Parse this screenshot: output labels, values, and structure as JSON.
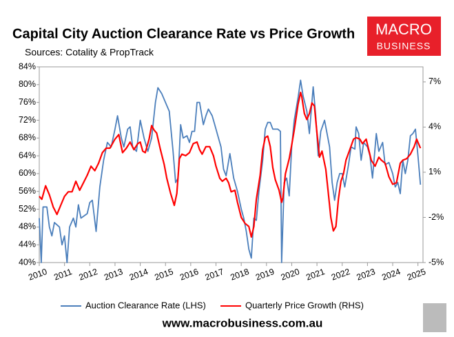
{
  "chart_data": {
    "type": "line",
    "title": "Capital City Auction Clearance Rate vs Price Growth",
    "subtitle": "Sources: Cotality & PropTrack",
    "logo_text": "MACRO",
    "logo_subtext": "BUSINESS",
    "website": "www.macrobusiness.com.au",
    "xlim": [
      2010,
      2025.2
    ],
    "xticks": [
      2010,
      2011,
      2012,
      2013,
      2014,
      2015,
      2016,
      2017,
      2018,
      2019,
      2020,
      2021,
      2022,
      2023,
      2024,
      2025
    ],
    "ylim": [
      40,
      84
    ],
    "yticks": [
      {
        "value": 40,
        "label": "40%"
      },
      {
        "value": 44,
        "label": "44%"
      },
      {
        "value": 48,
        "label": "48%"
      },
      {
        "value": 52,
        "label": "52%"
      },
      {
        "value": 56,
        "label": "56%"
      },
      {
        "value": 60,
        "label": "60%"
      },
      {
        "value": 64,
        "label": "64%"
      },
      {
        "value": 68,
        "label": "68%"
      },
      {
        "value": 72,
        "label": "72%"
      },
      {
        "value": 76,
        "label": "76%"
      },
      {
        "value": 80,
        "label": "80%"
      },
      {
        "value": 84,
        "label": "84%"
      }
    ],
    "y2lim": [
      -5,
      8
    ],
    "y2ticks": [
      {
        "value": -5,
        "label": "-5%"
      },
      {
        "value": -2,
        "label": "-2%"
      },
      {
        "value": 1,
        "label": "1%"
      },
      {
        "value": 4,
        "label": "4%"
      },
      {
        "value": 7,
        "label": "7%"
      }
    ],
    "grid": false,
    "legend": "bottom",
    "series": [
      {
        "name": "Auction Clearance Rate (LHS)",
        "color": "#4a7ebb",
        "x": [
          2010.0,
          2010.08,
          2010.15,
          2010.3,
          2010.4,
          2010.5,
          2010.6,
          2010.8,
          2010.9,
          2011.0,
          2011.1,
          2011.2,
          2011.35,
          2011.45,
          2011.55,
          2011.65,
          2011.9,
          2012.0,
          2012.1,
          2012.25,
          2012.4,
          2012.55,
          2012.7,
          2012.85,
          2013.0,
          2013.1,
          2013.25,
          2013.35,
          2013.5,
          2013.6,
          2013.7,
          2013.85,
          2014.0,
          2014.15,
          2014.3,
          2014.45,
          2014.6,
          2014.7,
          2014.85,
          2015.0,
          2015.15,
          2015.3,
          2015.4,
          2015.5,
          2015.6,
          2015.7,
          2015.85,
          2015.95,
          2016.05,
          2016.15,
          2016.25,
          2016.35,
          2016.5,
          2016.6,
          2016.7,
          2016.85,
          2016.95,
          2017.05,
          2017.2,
          2017.3,
          2017.4,
          2017.55,
          2017.7,
          2017.85,
          2018.0,
          2018.1,
          2018.2,
          2018.3,
          2018.4,
          2018.5,
          2018.6,
          2018.7,
          2018.85,
          2018.95,
          2019.05,
          2019.15,
          2019.25,
          2019.45,
          2019.55,
          2019.6,
          2019.7,
          2019.8,
          2019.9,
          2020.0,
          2020.1,
          2020.25,
          2020.35,
          2020.45,
          2020.6,
          2020.7,
          2020.85,
          2020.95,
          2021.05,
          2021.15,
          2021.3,
          2021.5,
          2021.6,
          2021.7,
          2021.8,
          2021.9,
          2022.0,
          2022.1,
          2022.25,
          2022.35,
          2022.5,
          2022.55,
          2022.65,
          2022.75,
          2022.85,
          2023.0,
          2023.1,
          2023.2,
          2023.35,
          2023.45,
          2023.6,
          2023.7,
          2023.85,
          2024.0,
          2024.1,
          2024.2,
          2024.3,
          2024.4,
          2024.5,
          2024.6,
          2024.7,
          2024.8,
          2024.9,
          2025.0,
          2025.1
        ],
        "values": [
          50,
          40,
          52.5,
          52.5,
          48,
          46,
          49,
          48,
          44,
          46,
          40,
          48,
          50,
          48,
          53,
          50,
          51,
          53.5,
          54,
          47,
          57,
          63,
          67,
          66,
          70,
          73,
          68,
          66,
          70,
          70.5,
          66,
          65,
          72,
          68,
          65,
          68,
          76,
          79.3,
          78,
          76,
          74,
          65,
          58,
          59,
          71,
          68,
          68.5,
          67,
          69.5,
          69.5,
          76,
          76,
          71,
          73,
          74.5,
          73,
          71,
          69,
          66,
          61,
          59.5,
          64.5,
          59,
          56,
          52,
          50,
          47,
          43,
          41,
          50,
          49.5,
          56,
          63,
          70,
          71.5,
          71.5,
          70,
          70,
          69.5,
          40,
          58,
          59,
          55,
          66,
          72,
          77,
          81,
          77.5,
          74,
          69,
          79.5,
          73,
          64,
          69.5,
          72,
          66,
          58,
          54,
          58,
          60,
          60,
          57,
          62,
          66,
          65.5,
          70.5,
          69,
          63,
          67,
          66,
          64,
          59,
          69,
          65,
          67,
          62,
          62.5,
          60,
          57,
          58,
          55.5,
          63,
          60,
          63,
          68.5,
          69,
          70,
          64,
          57.5
        ]
      },
      {
        "name": "Quarterly Price Growth (RHS)",
        "color": "#ff0000",
        "axis": "y2",
        "x": [
          2010.0,
          2010.1,
          2010.25,
          2010.4,
          2010.55,
          2010.7,
          2010.85,
          2011.0,
          2011.15,
          2011.3,
          2011.45,
          2011.6,
          2011.75,
          2011.9,
          2012.05,
          2012.2,
          2012.35,
          2012.5,
          2012.65,
          2012.8,
          2013.0,
          2013.15,
          2013.3,
          2013.45,
          2013.6,
          2013.75,
          2013.9,
          2014.0,
          2014.1,
          2014.2,
          2014.35,
          2014.45,
          2014.55,
          2014.65,
          2014.8,
          2014.95,
          2015.05,
          2015.2,
          2015.35,
          2015.45,
          2015.55,
          2015.65,
          2015.8,
          2015.95,
          2016.1,
          2016.25,
          2016.35,
          2016.45,
          2016.6,
          2016.75,
          2016.9,
          2017.0,
          2017.15,
          2017.25,
          2017.4,
          2017.5,
          2017.6,
          2017.75,
          2017.85,
          2018.0,
          2018.15,
          2018.3,
          2018.4,
          2018.5,
          2018.6,
          2018.75,
          2018.85,
          2018.95,
          2019.05,
          2019.15,
          2019.25,
          2019.35,
          2019.5,
          2019.6,
          2019.65,
          2019.75,
          2019.9,
          2020.0,
          2020.1,
          2020.25,
          2020.35,
          2020.4,
          2020.5,
          2020.6,
          2020.7,
          2020.8,
          2020.9,
          2021.0,
          2021.1,
          2021.2,
          2021.35,
          2021.45,
          2021.55,
          2021.65,
          2021.75,
          2021.85,
          2021.95,
          2022.05,
          2022.15,
          2022.3,
          2022.45,
          2022.55,
          2022.7,
          2022.8,
          2022.95,
          2023.05,
          2023.15,
          2023.3,
          2023.45,
          2023.55,
          2023.7,
          2023.85,
          2024.0,
          2024.15,
          2024.3,
          2024.4,
          2024.55,
          2024.7,
          2024.85,
          2024.95,
          2025.1
        ],
        "values": [
          -0.6,
          -0.8,
          0.1,
          -0.5,
          -1.3,
          -1.8,
          -1.2,
          -0.6,
          -0.3,
          -0.3,
          0.4,
          -0.2,
          0.3,
          0.8,
          1.4,
          1.1,
          1.6,
          2.3,
          2.6,
          2.6,
          3.2,
          3.5,
          2.3,
          2.6,
          3.0,
          2.5,
          2.9,
          3.0,
          2.4,
          2.3,
          3.2,
          4.1,
          3.8,
          3.6,
          2.5,
          1.5,
          0.6,
          -0.4,
          -1.2,
          -0.4,
          1.9,
          2.2,
          2.1,
          2.3,
          2.9,
          3.0,
          2.5,
          2.2,
          2.7,
          2.7,
          2.1,
          1.4,
          0.6,
          0.4,
          0.6,
          0.3,
          -0.3,
          -0.2,
          -1.0,
          -2.0,
          -2.4,
          -2.6,
          -3.3,
          -2.6,
          -0.8,
          0.8,
          2.5,
          3.3,
          3.4,
          2.7,
          1.3,
          0.5,
          -0.2,
          -1.0,
          -0.7,
          0.9,
          1.9,
          2.8,
          3.8,
          5.5,
          6.3,
          6.0,
          4.9,
          4.5,
          4.9,
          5.6,
          5.4,
          3.6,
          2.0,
          2.4,
          1.2,
          -0.4,
          -2.0,
          -2.9,
          -2.6,
          -0.8,
          0.4,
          0.9,
          1.8,
          2.5,
          3.2,
          3.3,
          3.2,
          2.9,
          3.2,
          2.5,
          1.8,
          1.4,
          2.0,
          1.8,
          1.6,
          0.7,
          0.2,
          0.3,
          1.6,
          1.8,
          1.9,
          2.2,
          2.7,
          3.2,
          2.6
        ]
      }
    ]
  }
}
